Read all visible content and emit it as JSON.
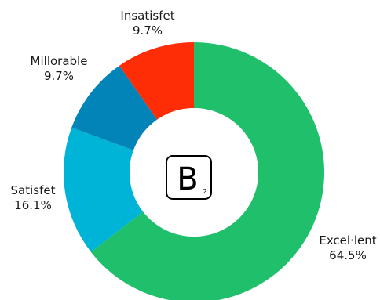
{
  "chart_data": {
    "type": "donut",
    "title": "",
    "categories": [
      "Excel·lent",
      "Satisfet",
      "Millorable",
      "Insatisfet"
    ],
    "values": [
      64.5,
      16.1,
      9.7,
      9.7
    ],
    "labels": [
      "64.5%",
      "16.1%",
      "9.7%",
      "9.7%"
    ],
    "colors": [
      "#20bf6b",
      "#00b4d8",
      "#0284b9",
      "#ff2d06"
    ],
    "start": "12 o'clock",
    "direction": "clockwise"
  },
  "center_logo": {
    "letter": "B",
    "subscript": "2"
  }
}
